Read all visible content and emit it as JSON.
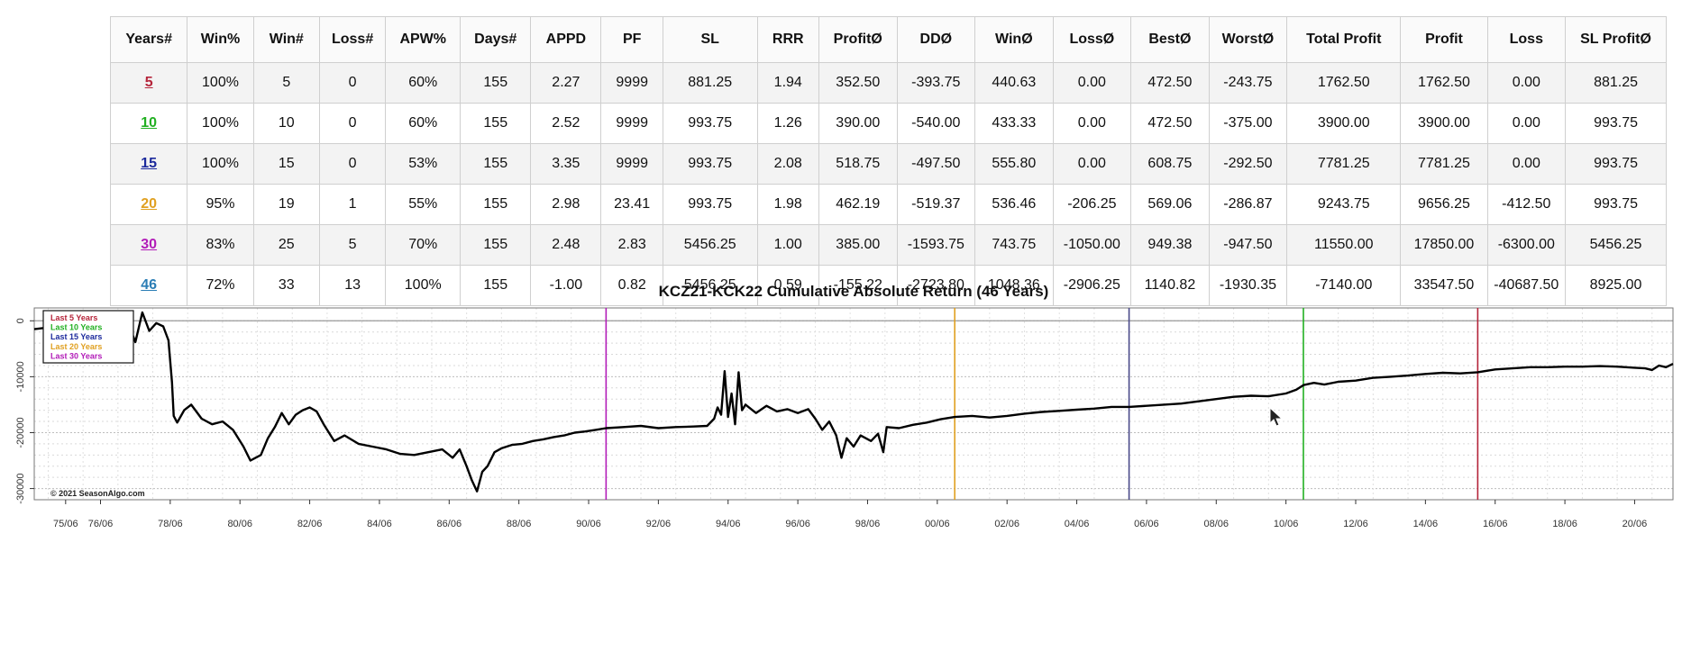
{
  "table": {
    "headers": [
      "Years#",
      "Win%",
      "Win#",
      "Loss#",
      "APW%",
      "Days#",
      "APPD",
      "PF",
      "SL",
      "RRR",
      "ProfitØ",
      "DDØ",
      "WinØ",
      "LossØ",
      "BestØ",
      "WorstØ",
      "Total Profit",
      "Profit",
      "Loss",
      "SL ProfitØ"
    ],
    "rows": [
      {
        "year": "5",
        "color": "#b5243a",
        "cells": [
          "100%",
          "5",
          "0",
          "60%",
          "155",
          "2.27",
          "9999",
          "881.25",
          "1.94",
          "352.50",
          "-393.75",
          "440.63",
          "0.00",
          "472.50",
          "-243.75",
          "1762.50",
          "1762.50",
          "0.00",
          "881.25"
        ]
      },
      {
        "year": "10",
        "color": "#22b022",
        "cells": [
          "100%",
          "10",
          "0",
          "60%",
          "155",
          "2.52",
          "9999",
          "993.75",
          "1.26",
          "390.00",
          "-540.00",
          "433.33",
          "0.00",
          "472.50",
          "-375.00",
          "3900.00",
          "3900.00",
          "0.00",
          "993.75"
        ]
      },
      {
        "year": "15",
        "color": "#1c2a9c",
        "cells": [
          "100%",
          "15",
          "0",
          "53%",
          "155",
          "3.35",
          "9999",
          "993.75",
          "2.08",
          "518.75",
          "-497.50",
          "555.80",
          "0.00",
          "608.75",
          "-292.50",
          "7781.25",
          "7781.25",
          "0.00",
          "993.75"
        ]
      },
      {
        "year": "20",
        "color": "#e0a020",
        "cells": [
          "95%",
          "19",
          "1",
          "55%",
          "155",
          "2.98",
          "23.41",
          "993.75",
          "1.98",
          "462.19",
          "-519.37",
          "536.46",
          "-206.25",
          "569.06",
          "-286.87",
          "9243.75",
          "9656.25",
          "-412.50",
          "993.75"
        ]
      },
      {
        "year": "30",
        "color": "#b21cb8",
        "cells": [
          "83%",
          "25",
          "5",
          "70%",
          "155",
          "2.48",
          "2.83",
          "5456.25",
          "1.00",
          "385.00",
          "-1593.75",
          "743.75",
          "-1050.00",
          "949.38",
          "-947.50",
          "11550.00",
          "17850.00",
          "-6300.00",
          "5456.25"
        ]
      },
      {
        "year": "46",
        "color": "#2a7db5",
        "cells": [
          "72%",
          "33",
          "13",
          "100%",
          "155",
          "-1.00",
          "0.82",
          "5456.25",
          "0.59",
          "-155.22",
          "-2723.80",
          "1048.36",
          "-2906.25",
          "1140.82",
          "-1930.35",
          "-7140.00",
          "33547.50",
          "-40687.50",
          "8925.00"
        ]
      }
    ]
  },
  "chart_data": {
    "type": "line",
    "title": "KCZ21-KCK22 Cumulative Absolute Return (46 Years)",
    "xlabel": "",
    "ylabel": "",
    "x_ticks": [
      "75/06",
      "76/06",
      "78/06",
      "80/06",
      "82/06",
      "84/06",
      "86/06",
      "88/06",
      "90/06",
      "92/06",
      "94/06",
      "96/06",
      "98/06",
      "00/06",
      "02/06",
      "04/06",
      "06/06",
      "08/06",
      "10/06",
      "12/06",
      "14/06",
      "16/06",
      "18/06",
      "20/06"
    ],
    "x_tick_years": [
      1975.5,
      1976.5,
      1978.5,
      1980.5,
      1982.5,
      1984.5,
      1986.5,
      1988.5,
      1990.5,
      1992.5,
      1994.5,
      1996.5,
      1998.5,
      2000.5,
      2002.5,
      2004.5,
      2006.5,
      2008.5,
      2010.5,
      2012.5,
      2014.5,
      2016.5,
      2018.5,
      2020.5
    ],
    "xlim": [
      1974.6,
      2021.6
    ],
    "y_ticks": [
      0,
      -10000,
      -20000,
      -30000
    ],
    "ylim": [
      -32000,
      2300
    ],
    "grid": true,
    "legend_position": "top-left",
    "legend": [
      {
        "label": "Last 5 Years",
        "color": "#b5243a"
      },
      {
        "label": "Last 10 Years",
        "color": "#22b022"
      },
      {
        "label": "Last 15 Years",
        "color": "#1c2a9c"
      },
      {
        "label": "Last 20 Years",
        "color": "#e0a020"
      },
      {
        "label": "Last 30 Years",
        "color": "#b21cb8"
      }
    ],
    "vertical_markers": [
      {
        "x": 1991.0,
        "color": "#b21cb8"
      },
      {
        "x": 2001.0,
        "color": "#e0a020"
      },
      {
        "x": 2006.0,
        "color": "#4a4a8a"
      },
      {
        "x": 2011.0,
        "color": "#22b022"
      },
      {
        "x": 2016.0,
        "color": "#b5243a"
      }
    ],
    "watermark": "© 2021 SeasonAlgo.com",
    "series": [
      {
        "color": "#000000",
        "points": [
          [
            1974.6,
            -1500
          ],
          [
            1975.0,
            -1200
          ],
          [
            1975.5,
            -1400
          ],
          [
            1975.9,
            -1000
          ],
          [
            1976.2,
            -900
          ],
          [
            1976.5,
            0
          ],
          [
            1976.7,
            -2200
          ],
          [
            1976.9,
            1200
          ],
          [
            1977.1,
            -2500
          ],
          [
            1977.3,
            -500
          ],
          [
            1977.5,
            -3800
          ],
          [
            1977.7,
            1500
          ],
          [
            1977.9,
            -1800
          ],
          [
            1978.1,
            -400
          ],
          [
            1978.3,
            -1000
          ],
          [
            1978.45,
            -3500
          ],
          [
            1978.55,
            -11000
          ],
          [
            1978.6,
            -17000
          ],
          [
            1978.7,
            -18200
          ],
          [
            1978.9,
            -16000
          ],
          [
            1979.1,
            -15000
          ],
          [
            1979.4,
            -17500
          ],
          [
            1979.7,
            -18500
          ],
          [
            1980.0,
            -18000
          ],
          [
            1980.3,
            -19500
          ],
          [
            1980.6,
            -22500
          ],
          [
            1980.8,
            -25000
          ],
          [
            1981.1,
            -24000
          ],
          [
            1981.3,
            -21000
          ],
          [
            1981.5,
            -19000
          ],
          [
            1981.7,
            -16500
          ],
          [
            1981.9,
            -18500
          ],
          [
            1982.1,
            -16800
          ],
          [
            1982.3,
            -16000
          ],
          [
            1982.5,
            -15500
          ],
          [
            1982.7,
            -16200
          ],
          [
            1982.9,
            -18500
          ],
          [
            1983.2,
            -21500
          ],
          [
            1983.5,
            -20500
          ],
          [
            1983.9,
            -22000
          ],
          [
            1984.3,
            -22500
          ],
          [
            1984.7,
            -23000
          ],
          [
            1985.1,
            -23800
          ],
          [
            1985.5,
            -24000
          ],
          [
            1985.9,
            -23500
          ],
          [
            1986.3,
            -23000
          ],
          [
            1986.6,
            -24500
          ],
          [
            1986.8,
            -23000
          ],
          [
            1987.0,
            -26000
          ],
          [
            1987.15,
            -28500
          ],
          [
            1987.3,
            -30500
          ],
          [
            1987.45,
            -27000
          ],
          [
            1987.6,
            -26000
          ],
          [
            1987.8,
            -23500
          ],
          [
            1988.0,
            -22800
          ],
          [
            1988.3,
            -22200
          ],
          [
            1988.6,
            -22000
          ],
          [
            1988.9,
            -21500
          ],
          [
            1989.2,
            -21200
          ],
          [
            1989.5,
            -20800
          ],
          [
            1989.8,
            -20500
          ],
          [
            1990.1,
            -20000
          ],
          [
            1990.4,
            -19800
          ],
          [
            1990.7,
            -19500
          ],
          [
            1991.0,
            -19200
          ],
          [
            1991.5,
            -19000
          ],
          [
            1992.0,
            -18800
          ],
          [
            1992.5,
            -19200
          ],
          [
            1993.0,
            -19000
          ],
          [
            1993.5,
            -18900
          ],
          [
            1993.9,
            -18800
          ],
          [
            1994.1,
            -17500
          ],
          [
            1994.2,
            -15500
          ],
          [
            1994.3,
            -16800
          ],
          [
            1994.4,
            -9000
          ],
          [
            1994.5,
            -17200
          ],
          [
            1994.6,
            -13000
          ],
          [
            1994.7,
            -18500
          ],
          [
            1994.8,
            -9200
          ],
          [
            1994.9,
            -16000
          ],
          [
            1995.0,
            -15000
          ],
          [
            1995.3,
            -16500
          ],
          [
            1995.6,
            -15200
          ],
          [
            1995.9,
            -16200
          ],
          [
            1996.2,
            -15800
          ],
          [
            1996.5,
            -16500
          ],
          [
            1996.8,
            -15800
          ],
          [
            1997.0,
            -17500
          ],
          [
            1997.2,
            -19500
          ],
          [
            1997.4,
            -18000
          ],
          [
            1997.6,
            -20500
          ],
          [
            1997.75,
            -24500
          ],
          [
            1997.9,
            -21000
          ],
          [
            1998.1,
            -22500
          ],
          [
            1998.3,
            -20500
          ],
          [
            1998.6,
            -21500
          ],
          [
            1998.8,
            -20200
          ],
          [
            1998.95,
            -23500
          ],
          [
            1999.05,
            -19000
          ],
          [
            1999.4,
            -19200
          ],
          [
            1999.8,
            -18600
          ],
          [
            2000.2,
            -18200
          ],
          [
            2000.6,
            -17600
          ],
          [
            2001.0,
            -17200
          ],
          [
            2001.5,
            -17000
          ],
          [
            2002.0,
            -17300
          ],
          [
            2002.5,
            -17000
          ],
          [
            2003.0,
            -16600
          ],
          [
            2003.5,
            -16300
          ],
          [
            2004.0,
            -16100
          ],
          [
            2004.5,
            -15900
          ],
          [
            2005.0,
            -15700
          ],
          [
            2005.5,
            -15400
          ],
          [
            2006.0,
            -15400
          ],
          [
            2006.5,
            -15200
          ],
          [
            2007.0,
            -15000
          ],
          [
            2007.5,
            -14800
          ],
          [
            2008.0,
            -14400
          ],
          [
            2008.5,
            -14000
          ],
          [
            2009.0,
            -13600
          ],
          [
            2009.5,
            -13400
          ],
          [
            2010.0,
            -13500
          ],
          [
            2010.5,
            -13000
          ],
          [
            2010.8,
            -12300
          ],
          [
            2011.0,
            -11500
          ],
          [
            2011.3,
            -11100
          ],
          [
            2011.6,
            -11400
          ],
          [
            2012.0,
            -10900
          ],
          [
            2012.5,
            -10700
          ],
          [
            2013.0,
            -10200
          ],
          [
            2013.5,
            -10000
          ],
          [
            2014.0,
            -9800
          ],
          [
            2014.5,
            -9500
          ],
          [
            2015.0,
            -9300
          ],
          [
            2015.5,
            -9400
          ],
          [
            2016.0,
            -9200
          ],
          [
            2016.5,
            -8700
          ],
          [
            2017.0,
            -8500
          ],
          [
            2017.5,
            -8300
          ],
          [
            2018.0,
            -8300
          ],
          [
            2018.5,
            -8200
          ],
          [
            2019.0,
            -8200
          ],
          [
            2019.5,
            -8100
          ],
          [
            2020.0,
            -8200
          ],
          [
            2020.5,
            -8400
          ],
          [
            2020.8,
            -8500
          ],
          [
            2021.0,
            -8800
          ],
          [
            2021.2,
            -8000
          ],
          [
            2021.4,
            -8300
          ],
          [
            2021.6,
            -7700
          ]
        ]
      }
    ]
  }
}
